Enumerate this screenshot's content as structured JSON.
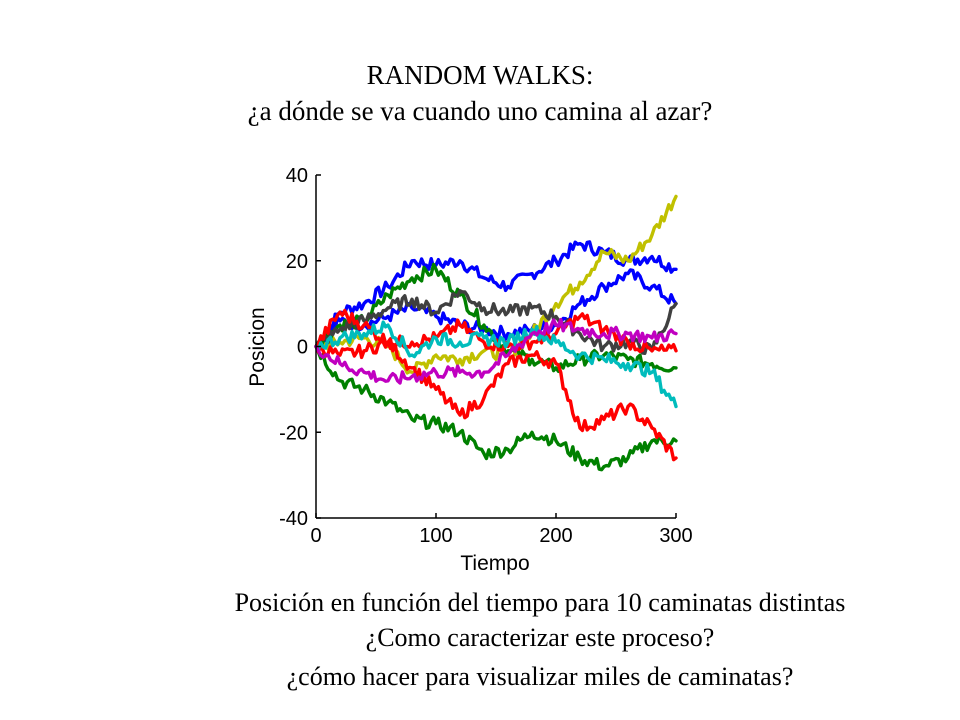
{
  "slide": {
    "title_line1": "RANDOM WALKS:",
    "title_line2": "¿a dónde se va cuando uno camina al azar?",
    "caption_line1": "Posición en función del tiempo para 10 caminatas distintas",
    "caption_line2": "¿Como caracterizar este proceso?",
    "caption_line3": "¿cómo hacer para visualizar  miles de caminatas?"
  },
  "chart_data": {
    "type": "line",
    "title": "",
    "xlabel": "Tiempo",
    "ylabel": "Posicion",
    "xlim": [
      0,
      300
    ],
    "ylim": [
      -40,
      40
    ],
    "xticks": [
      0,
      100,
      200,
      300
    ],
    "yticks": [
      40,
      20,
      0,
      -20,
      -40
    ],
    "grid": false,
    "legend": "none",
    "x": [
      0,
      20,
      40,
      60,
      80,
      100,
      120,
      140,
      160,
      180,
      200,
      220,
      240,
      260,
      280,
      300
    ],
    "series": [
      {
        "color": "#0000ff",
        "values": [
          0,
          8,
          10,
          14,
          20,
          19,
          20,
          16,
          14,
          17,
          20,
          24,
          22,
          20,
          21,
          18
        ]
      },
      {
        "color": "#0000ff",
        "values": [
          0,
          6,
          5,
          7,
          9,
          7,
          5,
          4,
          3,
          4,
          5,
          10,
          14,
          17,
          14,
          10
        ]
      },
      {
        "color": "#c0c000",
        "values": [
          0,
          1,
          2,
          0,
          -6,
          -2,
          -3,
          -1,
          -2,
          3,
          10,
          15,
          22,
          20,
          26,
          35
        ]
      },
      {
        "color": "#008000",
        "values": [
          0,
          5,
          6,
          12,
          16,
          18,
          12,
          5,
          -1,
          -3,
          -5,
          -3,
          -2,
          -3,
          -4,
          -5
        ]
      },
      {
        "color": "#008000",
        "values": [
          0,
          -8,
          -10,
          -13,
          -17,
          -18,
          -20,
          -25,
          -24,
          -20,
          -22,
          -26,
          -28,
          -26,
          -22,
          -22
        ]
      },
      {
        "color": "#404040",
        "values": [
          0,
          4,
          6,
          9,
          11,
          8,
          13,
          9,
          8,
          9,
          7,
          3,
          0,
          1,
          -1,
          10
        ]
      },
      {
        "color": "#ff0000",
        "values": [
          0,
          -2,
          -1,
          1,
          -5,
          -10,
          -16,
          -12,
          -4,
          -2,
          -4,
          -19,
          -17,
          -14,
          -19,
          -26
        ]
      },
      {
        "color": "#ff0000",
        "values": [
          0,
          8,
          5,
          1,
          1,
          2,
          5,
          1,
          0,
          1,
          3,
          7,
          4,
          1,
          -1,
          -1
        ]
      },
      {
        "color": "#00bcbc",
        "values": [
          0,
          2,
          3,
          5,
          -2,
          2,
          1,
          2,
          1,
          4,
          1,
          -2,
          -3,
          -4,
          -6,
          -14
        ]
      },
      {
        "color": "#c000c0",
        "values": [
          0,
          -4,
          -6,
          -8,
          -7,
          -6,
          -6,
          -6,
          -2,
          3,
          5,
          4,
          3,
          3,
          2,
          3
        ]
      }
    ]
  }
}
